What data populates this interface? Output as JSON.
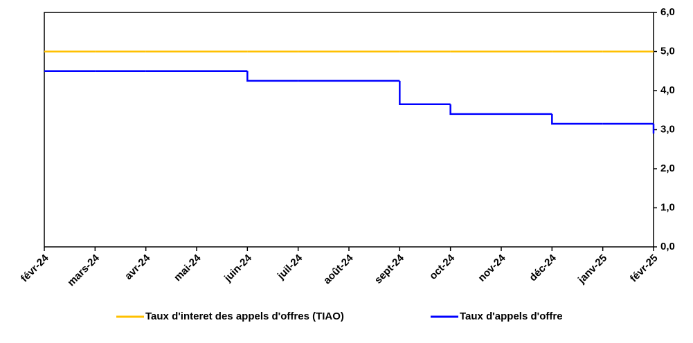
{
  "chart_data": {
    "type": "line",
    "step": "after",
    "categories": [
      "févr-24",
      "mars-24",
      "avr-24",
      "mai-24",
      "juin-24",
      "juil-24",
      "août-24",
      "sept-24",
      "oct-24",
      "nov-24",
      "déc-24",
      "janv-25",
      "févr-25"
    ],
    "series": [
      {
        "name": "Taux d'interet des appels d'offres (TIAO)",
        "color": "#FFC000",
        "values": [
          5.0,
          5.0,
          5.0,
          5.0,
          5.0,
          5.0,
          5.0,
          5.0,
          5.0,
          5.0,
          5.0,
          5.0,
          5.0
        ]
      },
      {
        "name": "Taux d'appels d'offre",
        "color": "#0000FF",
        "values": [
          4.5,
          4.5,
          4.5,
          4.5,
          4.25,
          4.25,
          4.25,
          3.65,
          3.4,
          3.4,
          3.15,
          3.15,
          2.9
        ]
      }
    ],
    "ylim": [
      0,
      6
    ],
    "yticks": [
      {
        "value": 0,
        "label": "0,0"
      },
      {
        "value": 1,
        "label": "1,0"
      },
      {
        "value": 2,
        "label": "2,0"
      },
      {
        "value": 3,
        "label": "3,0"
      },
      {
        "value": 4,
        "label": "4,0"
      },
      {
        "value": 5,
        "label": "5,0"
      },
      {
        "value": 6,
        "label": "6,0"
      }
    ],
    "y_axis_side": "right",
    "legend": "bottom"
  }
}
